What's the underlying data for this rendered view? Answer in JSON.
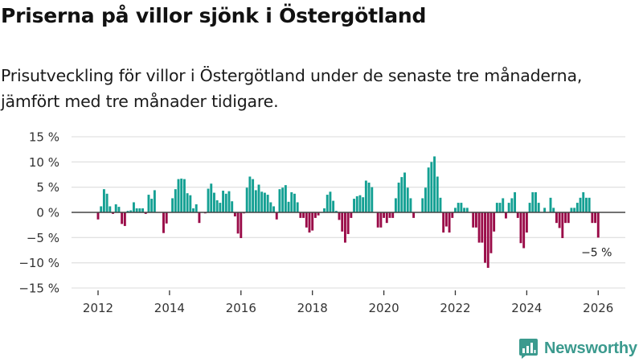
{
  "header": {
    "title": "Priserna på villor sjönk i Östergötland",
    "subtitle_line1": "Prisutveckling för villor i Östergötland under de senaste tre månaderna,",
    "subtitle_line2": "jämfört med tre månader tidigare."
  },
  "branding": {
    "logo_icon": "bar-chart-speech-bubble-icon",
    "name": "Newsworthy",
    "color": "#3b9a8e"
  },
  "colors": {
    "positive": "#14a093",
    "negative": "#9a0b48",
    "zero_line": "#444444",
    "grid": "#e2e2e2"
  },
  "chart_data": {
    "type": "bar",
    "title": "Priserna på villor sjönk i Östergötland",
    "subtitle": "Prisutveckling för villor i Östergötland under de senaste tre månaderna, jämfört med tre månader tidigare.",
    "xlabel": "",
    "ylabel": "",
    "unit": "%",
    "x_start": "2012-01",
    "x_end": "2026-01",
    "frequency": "monthly",
    "ylim": [
      -15,
      15
    ],
    "yticks": [
      15,
      10,
      5,
      0,
      -5,
      -10,
      -15
    ],
    "ytick_labels": [
      "15 %",
      "10 %",
      "5 %",
      "0 %",
      "−5 %",
      "−10 %",
      "−15 %"
    ],
    "xticks": [
      2012,
      2014,
      2016,
      2018,
      2020,
      2022,
      2024,
      2026
    ],
    "xtick_labels": [
      "2012",
      "2014",
      "2016",
      "2018",
      "2020",
      "2022",
      "2024",
      "2026"
    ],
    "grid": true,
    "legend": "none",
    "annotation": {
      "text": "−5 %",
      "target": "last"
    },
    "values": [
      -1.4,
      1.2,
      4.6,
      3.7,
      1.2,
      -0.3,
      1.6,
      1.1,
      -2.3,
      -2.7,
      0.3,
      0.4,
      2.0,
      0.8,
      0.8,
      0.8,
      -0.3,
      3.5,
      2.7,
      4.4,
      0,
      0,
      -4.1,
      -2.2,
      0,
      2.8,
      4.6,
      6.6,
      6.7,
      6.6,
      3.8,
      3.4,
      0.8,
      1.6,
      -2.1,
      0,
      -0.2,
      4.7,
      5.7,
      3.9,
      2.4,
      1.9,
      4.3,
      3.7,
      4.2,
      2.2,
      -0.8,
      -4.2,
      -5.1,
      -0.2,
      4.9,
      7.1,
      6.6,
      4.4,
      5.5,
      4.1,
      3.9,
      3.5,
      2.0,
      1.2,
      -1.4,
      4.6,
      4.9,
      5.4,
      2.1,
      4.0,
      3.7,
      2.0,
      -1.1,
      -1.1,
      -3.0,
      -4.0,
      -3.6,
      -1.1,
      -0.6,
      0,
      0.8,
      3.5,
      4.1,
      2.3,
      0.3,
      -1.5,
      -3.8,
      -6.0,
      -4.3,
      -1.1,
      2.7,
      3.2,
      3.4,
      3.0,
      6.3,
      5.9,
      5.0,
      0,
      -3.0,
      -3.0,
      -1.1,
      -2.1,
      -1.1,
      -1.1,
      2.8,
      5.9,
      7.0,
      7.9,
      4.9,
      2.8,
      -1.1,
      0,
      0,
      2.8,
      4.9,
      8.9,
      10.0,
      11.1,
      7.1,
      2.9,
      -4.0,
      -2.8,
      -4.0,
      -1.1,
      0.9,
      1.9,
      1.9,
      0.9,
      0.9,
      0,
      -3.0,
      -3.0,
      -6.0,
      -6.0,
      -10.0,
      -11.0,
      -8.1,
      -3.8,
      1.9,
      1.9,
      2.8,
      -1.2,
      1.9,
      2.8,
      4.0,
      -1.1,
      -6.1,
      -7.1,
      -4.0,
      1.9,
      4.0,
      4.0,
      1.9,
      0,
      0.9,
      0,
      2.9,
      0.9,
      -2.1,
      -3.1,
      -5.1,
      -2.1,
      -2.1,
      0.9,
      0.9,
      1.9,
      2.9,
      4.0,
      2.9,
      2.9,
      -2.1,
      -2.1,
      -5.0
    ]
  }
}
